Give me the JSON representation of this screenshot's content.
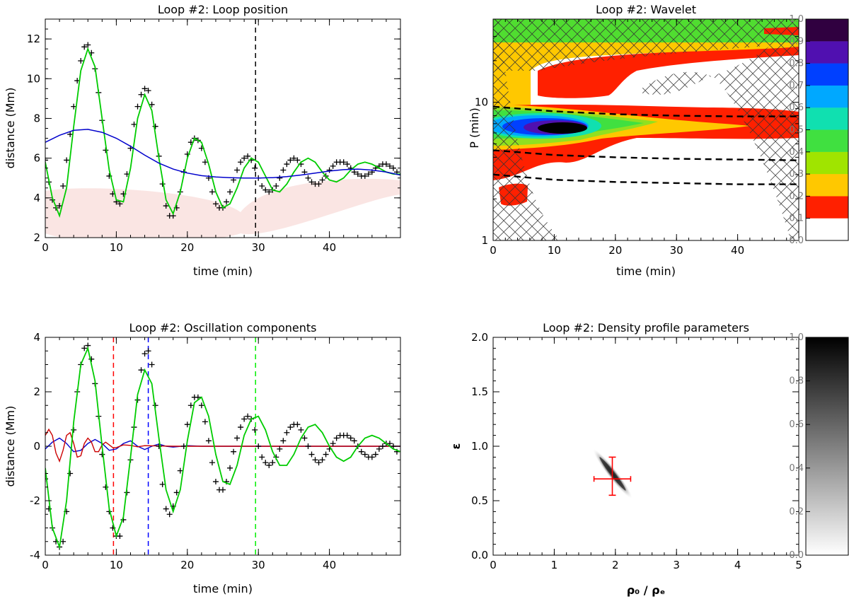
{
  "chart_data": [
    {
      "type": "line",
      "title": "Loop #2: Loop position",
      "xlabel": "time (min)",
      "ylabel": "distance (Mm)",
      "xlim": [
        0,
        50
      ],
      "ylim": [
        2,
        13
      ],
      "xticks": [
        "0",
        "10",
        "20",
        "30",
        "40"
      ],
      "yticks": [
        "2",
        "4",
        "6",
        "8",
        "10",
        "12"
      ],
      "vline_x": 29.6,
      "vline_color": "#000000",
      "series": [
        {
          "role": "data-crosses",
          "color": "#000000",
          "x": [
            0,
            0.5,
            1,
            1.5,
            2,
            2.5,
            3,
            3.5,
            4,
            4.5,
            5,
            5.5,
            6,
            6.5,
            7,
            7.5,
            8,
            8.5,
            9,
            9.5,
            10,
            10.5,
            11,
            11.5,
            12,
            12.5,
            13,
            13.5,
            14,
            14.5,
            15,
            15.5,
            16,
            16.5,
            17,
            17.5,
            18,
            18.5,
            19,
            19.5,
            20,
            20.5,
            21,
            21.5,
            22,
            22.5,
            23,
            23.5,
            24,
            24.5,
            25,
            25.5,
            26,
            26.5,
            27,
            27.5,
            28,
            28.5,
            29,
            29.5,
            30,
            30.5,
            31,
            31.5,
            32,
            32.5,
            33,
            33.5,
            34,
            34.5,
            35,
            35.5,
            36,
            36.5,
            37,
            37.5,
            38,
            38.5,
            39,
            39.5,
            40,
            40.5,
            41,
            41.5,
            42,
            42.5,
            43,
            43.5,
            44,
            44.5,
            45,
            45.5,
            46,
            46.5,
            47,
            47.5,
            48,
            48.5,
            49,
            49.5
          ],
          "y": [
            5.9,
            4.8,
            3.9,
            3.5,
            3.6,
            4.6,
            5.9,
            7.2,
            8.6,
            9.9,
            10.9,
            11.6,
            11.7,
            11.3,
            10.5,
            9.3,
            7.9,
            6.4,
            5.1,
            4.2,
            3.8,
            3.7,
            4.2,
            5.2,
            6.5,
            7.7,
            8.6,
            9.2,
            9.5,
            9.4,
            8.7,
            7.6,
            6.1,
            4.7,
            3.6,
            3.1,
            3.1,
            3.5,
            4.3,
            5.3,
            6.2,
            6.8,
            7.0,
            6.9,
            6.5,
            5.8,
            5.0,
            4.3,
            3.7,
            3.5,
            3.5,
            3.8,
            4.3,
            4.9,
            5.4,
            5.8,
            6.0,
            6.1,
            5.9,
            5.5,
            5.0,
            4.6,
            4.4,
            4.3,
            4.4,
            4.6,
            5.0,
            5.4,
            5.7,
            5.9,
            6.0,
            5.9,
            5.7,
            5.3,
            5.0,
            4.8,
            4.7,
            4.7,
            4.9,
            5.1,
            5.4,
            5.6,
            5.8,
            5.8,
            5.8,
            5.7,
            5.5,
            5.3,
            5.2,
            5.1,
            5.1,
            5.2,
            5.3,
            5.5,
            5.6,
            5.7,
            5.7,
            5.6,
            5.5,
            5.3
          ]
        },
        {
          "role": "fit",
          "color": "#00cc00",
          "x": [
            0,
            1,
            2,
            3,
            4,
            5,
            6,
            7,
            8,
            9,
            10,
            11,
            12,
            13,
            14,
            15,
            16,
            17,
            18,
            19,
            20,
            21,
            22,
            23,
            24,
            25,
            26,
            27,
            28,
            29,
            30,
            31,
            32,
            33,
            34,
            35,
            36,
            37,
            38,
            39,
            40,
            41,
            42,
            43,
            44,
            45,
            46,
            47,
            48,
            49,
            50
          ],
          "y": [
            5.8,
            4.0,
            3.1,
            4.5,
            7.6,
            10.4,
            11.5,
            10.6,
            8.0,
            5.4,
            3.9,
            3.8,
            5.5,
            8.0,
            9.2,
            8.4,
            6.0,
            3.9,
            3.2,
            4.3,
            6.0,
            7.0,
            6.8,
            5.7,
            4.3,
            3.5,
            3.7,
            4.5,
            5.5,
            6.0,
            5.8,
            5.1,
            4.4,
            4.3,
            4.7,
            5.3,
            5.8,
            6.0,
            5.8,
            5.3,
            4.9,
            4.8,
            5.0,
            5.4,
            5.7,
            5.8,
            5.7,
            5.5,
            5.3,
            5.2,
            5.2
          ]
        },
        {
          "role": "trend",
          "color": "#0000cc",
          "x": [
            0,
            2,
            4,
            6,
            8,
            10,
            12,
            14,
            16,
            18,
            20,
            22,
            24,
            26,
            28,
            30,
            32,
            34,
            36,
            38,
            40,
            42,
            44,
            46,
            48,
            50
          ],
          "y": [
            6.8,
            7.15,
            7.4,
            7.45,
            7.3,
            7.0,
            6.6,
            6.15,
            5.75,
            5.45,
            5.25,
            5.12,
            5.05,
            5.02,
            5.0,
            5.0,
            5.02,
            5.07,
            5.15,
            5.25,
            5.35,
            5.42,
            5.45,
            5.4,
            5.3,
            5.15
          ]
        }
      ]
    },
    {
      "type": "heatmap",
      "title": "Loop #2: Wavelet",
      "xlabel": "time (min)",
      "ylabel": "P (min)",
      "xlim": [
        0,
        50
      ],
      "ylim": [
        1,
        40
      ],
      "yscale": "log",
      "xticks": [
        "0",
        "10",
        "20",
        "30",
        "40"
      ],
      "yticks": [
        "1",
        "10"
      ],
      "colorbar_ticks": [
        "0.0",
        "0.1",
        "0.2",
        "0.3",
        "0.4",
        "0.5",
        "0.6",
        "0.7",
        "0.8",
        "0.9",
        "1.0"
      ],
      "colorbar_colors": [
        "#ffffff",
        "#ff2000",
        "#ffc800",
        "#a0e400",
        "#40e040",
        "#10e0b0",
        "#00a8ff",
        "#0040ff",
        "#5010b0",
        "#300040",
        "#000000"
      ],
      "peak_power": {
        "time": 11,
        "period": 7.5,
        "value": 1.0
      },
      "dashed_lines_period": [
        {
          "x": [
            0,
            10,
            20,
            30,
            40,
            50
          ],
          "y": [
            9.3,
            8.6,
            8.2,
            8.0,
            7.9,
            7.9
          ]
        },
        {
          "x": [
            0,
            10,
            20,
            30,
            40,
            50
          ],
          "y": [
            4.5,
            4.15,
            4.0,
            3.9,
            3.85,
            3.8
          ]
        },
        {
          "x": [
            0,
            10,
            20,
            30,
            40,
            50
          ],
          "y": [
            3.0,
            2.75,
            2.65,
            2.6,
            2.55,
            2.55
          ]
        }
      ],
      "cone_of_influence": "hatched"
    },
    {
      "type": "line",
      "title": "Loop #2: Oscillation components",
      "xlabel": "time (min)",
      "ylabel": "distance (Mm)",
      "xlim": [
        0,
        50
      ],
      "ylim": [
        -4,
        4
      ],
      "xticks": [
        "0",
        "10",
        "20",
        "30",
        "40"
      ],
      "yticks": [
        "-4",
        "-2",
        "0",
        "2",
        "4"
      ],
      "vlines": [
        {
          "x": 9.6,
          "color": "#ff0000"
        },
        {
          "x": 14.5,
          "color": "#0000ff"
        },
        {
          "x": 29.6,
          "color": "#00ee00"
        }
      ],
      "series": [
        {
          "role": "data-crosses",
          "color": "#000000",
          "x": [
            0,
            0.5,
            1,
            1.5,
            2,
            2.5,
            3,
            3.5,
            4,
            4.5,
            5,
            5.5,
            6,
            6.5,
            7,
            7.5,
            8,
            8.5,
            9,
            9.5,
            10,
            10.5,
            11,
            11.5,
            12,
            12.5,
            13,
            13.5,
            14,
            14.5,
            15,
            15.5,
            16,
            16.5,
            17,
            17.5,
            18,
            18.5,
            19,
            19.5,
            20,
            20.5,
            21,
            21.5,
            22,
            22.5,
            23,
            23.5,
            24,
            24.5,
            25,
            25.5,
            26,
            26.5,
            27,
            27.5,
            28,
            28.5,
            29,
            29.5,
            30,
            30.5,
            31,
            31.5,
            32,
            32.5,
            33,
            33.5,
            34,
            34.5,
            35,
            35.5,
            36,
            36.5,
            37,
            37.5,
            38,
            38.5,
            39,
            39.5,
            40,
            40.5,
            41,
            41.5,
            42,
            42.5,
            43,
            43.5,
            44,
            44.5,
            45,
            45.5,
            46,
            46.5,
            47,
            47.5,
            48,
            48.5,
            49,
            49.5
          ],
          "y": [
            -1.2,
            -2.3,
            -3.0,
            -3.5,
            -3.7,
            -3.5,
            -2.4,
            -1.0,
            0.6,
            2.0,
            3.0,
            3.6,
            3.7,
            3.2,
            2.3,
            1.1,
            -0.3,
            -1.5,
            -2.4,
            -3.0,
            -3.3,
            -3.3,
            -2.7,
            -1.7,
            -0.5,
            0.7,
            1.7,
            2.8,
            3.4,
            3.5,
            3.0,
            1.5,
            0.0,
            -1.4,
            -2.3,
            -2.5,
            -2.2,
            -1.7,
            -0.9,
            0.0,
            0.8,
            1.5,
            1.8,
            1.8,
            1.5,
            0.9,
            0.2,
            -0.6,
            -1.3,
            -1.6,
            -1.6,
            -1.3,
            -0.8,
            -0.2,
            0.3,
            0.7,
            1.0,
            1.1,
            1.0,
            0.6,
            0.0,
            -0.4,
            -0.6,
            -0.7,
            -0.6,
            -0.4,
            -0.1,
            0.2,
            0.5,
            0.7,
            0.8,
            0.8,
            0.6,
            0.3,
            0.0,
            -0.3,
            -0.5,
            -0.6,
            -0.5,
            -0.3,
            -0.1,
            0.1,
            0.3,
            0.4,
            0.4,
            0.4,
            0.3,
            0.2,
            0.0,
            -0.2,
            -0.3,
            -0.4,
            -0.4,
            -0.3,
            -0.1,
            0.0,
            0.1,
            0.1,
            0.0,
            -0.2
          ]
        },
        {
          "role": "main-component",
          "color": "#00cc00",
          "x": [
            0,
            1,
            2,
            3,
            4,
            5,
            6,
            7,
            8,
            9,
            10,
            11,
            12,
            13,
            14,
            15,
            16,
            17,
            18,
            19,
            20,
            21,
            22,
            23,
            24,
            25,
            26,
            27,
            28,
            29,
            30,
            31,
            32,
            33,
            34,
            35,
            36,
            37,
            38,
            39,
            40,
            41,
            42,
            43,
            44,
            45,
            46,
            47,
            48,
            49,
            50
          ],
          "y": [
            -0.8,
            -3.0,
            -3.7,
            -2.0,
            0.9,
            3.0,
            3.6,
            2.4,
            0.0,
            -2.3,
            -3.3,
            -2.6,
            -0.4,
            1.9,
            2.8,
            2.3,
            0.3,
            -1.6,
            -2.4,
            -1.6,
            0.2,
            1.6,
            1.8,
            1.1,
            -0.3,
            -1.3,
            -1.4,
            -0.7,
            0.4,
            1.0,
            1.1,
            0.6,
            -0.2,
            -0.7,
            -0.7,
            -0.3,
            0.3,
            0.7,
            0.8,
            0.5,
            0.0,
            -0.4,
            -0.55,
            -0.4,
            0.0,
            0.3,
            0.4,
            0.3,
            0.1,
            -0.1,
            -0.2
          ]
        },
        {
          "role": "component-2",
          "color": "#cc0000",
          "x": [
            0,
            0.5,
            1,
            1.5,
            2,
            2.5,
            3,
            3.5,
            4,
            4.5,
            5,
            5.5,
            6,
            6.5,
            7,
            7.5,
            8,
            8.5,
            9,
            9.5,
            10,
            11,
            12,
            13,
            14,
            16,
            18,
            20,
            25,
            30,
            35,
            40,
            45,
            50
          ],
          "y": [
            0.4,
            0.62,
            0.4,
            -0.25,
            -0.55,
            -0.15,
            0.4,
            0.5,
            0.1,
            -0.4,
            -0.35,
            0.1,
            0.3,
            0.15,
            -0.2,
            -0.2,
            0.05,
            0.15,
            0.05,
            -0.05,
            -0.05,
            0.05,
            0.03,
            -0.02,
            0.02,
            0.01,
            0.0,
            0.0,
            0.0,
            0.0,
            0.0,
            0.0,
            0.0,
            0.0
          ]
        },
        {
          "role": "component-3",
          "color": "#0000cc",
          "x": [
            0,
            1,
            2,
            3,
            4,
            5,
            6,
            7,
            8,
            9,
            10,
            11,
            12,
            13,
            14,
            15,
            16,
            17,
            18,
            20,
            22,
            25,
            30,
            35,
            40,
            45,
            50
          ],
          "y": [
            -0.1,
            0.15,
            0.3,
            0.1,
            -0.2,
            -0.15,
            0.1,
            0.25,
            0.1,
            -0.15,
            -0.1,
            0.1,
            0.2,
            0.0,
            -0.12,
            0.0,
            0.08,
            0.0,
            -0.03,
            0.02,
            0.0,
            0.0,
            0.0,
            0.0,
            0.0,
            0.0,
            0.0
          ]
        }
      ]
    },
    {
      "type": "heatmap",
      "title": "Loop #2: Density profile parameters",
      "xlabel": "ρ₀ / ρₑ",
      "ylabel": "ε",
      "xlim": [
        0,
        5
      ],
      "ylim": [
        0,
        2
      ],
      "xticks": [
        "0",
        "1",
        "2",
        "3",
        "4",
        "5"
      ],
      "yticks": [
        "0.0",
        "0.5",
        "1.0",
        "1.5",
        "2.0"
      ],
      "colorbar_ticks": [
        "0.0",
        "0.2",
        "0.4",
        "0.6",
        "0.8",
        "1.0"
      ],
      "best_fit": {
        "x": 1.95,
        "y": 0.7,
        "xerr": [
          1.65,
          2.25
        ],
        "yerr": [
          0.55,
          0.9
        ],
        "color": "#ff0000"
      },
      "peak_value": 1.0
    }
  ]
}
